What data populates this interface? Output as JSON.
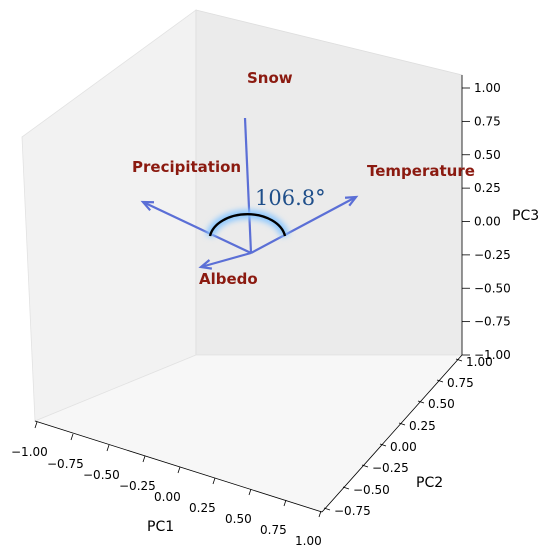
{
  "chart_data": {
    "type": "3d-vector",
    "axes": {
      "x": {
        "label": "PC1",
        "ticks": [
          "−1.00",
          "−0.75",
          "−0.50",
          "−0.25",
          "0.00",
          "0.25",
          "0.50",
          "0.75",
          "1.00"
        ]
      },
      "y": {
        "label": "PC2",
        "ticks": [
          "−0.75",
          "−0.50",
          "−0.25",
          "0.00",
          "0.25",
          "0.50",
          "0.75",
          "1.00"
        ]
      },
      "z": {
        "label": "PC3",
        "ticks": [
          "1.00",
          "0.75",
          "0.50",
          "0.25",
          "0.00",
          "−0.25",
          "−0.50",
          "−0.75",
          "−1.00"
        ]
      }
    },
    "vectors": [
      {
        "name": "Snow",
        "label": "Snow"
      },
      {
        "name": "Precipitation",
        "label": "Precipitation"
      },
      {
        "name": "Temperature",
        "label": "Temperature"
      },
      {
        "name": "Albedo",
        "label": "Albedo"
      }
    ],
    "angle_annotation": "106.8°",
    "colors": {
      "vector": "#5b6fd6",
      "label": "#8b1a10",
      "angle_text": "#1f4f8a",
      "arc": "#000000",
      "glow": "#8cc8ff"
    }
  }
}
